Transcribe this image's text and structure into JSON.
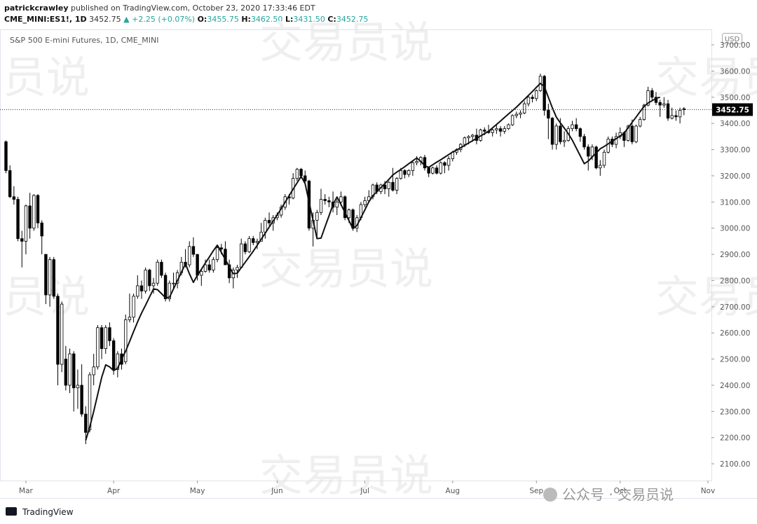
{
  "header": {
    "author": "patrickcrawley",
    "published": "published on TradingView.com, October 23, 2020 17:33:46 EDT",
    "symbol": "CME_MINI:ES1!, 1D",
    "last": "3452.75",
    "change": "▲ +2.25 (+0.07%)",
    "ohlc": [
      {
        "label": "O:",
        "value": "3455.75"
      },
      {
        "label": "H:",
        "value": "3462.50"
      },
      {
        "label": "L:",
        "value": "3431.50"
      },
      {
        "label": "C:",
        "value": "3452.75"
      }
    ]
  },
  "footer": {
    "brand": "TradingView",
    "watermark": "交易员说",
    "wechat": "公众号 · 交易员说"
  },
  "chart_data": {
    "type": "candlestick",
    "title": "S&P 500 E-mini Futures, 1D, CME_MINI",
    "currency": "USD",
    "grid": false,
    "up_color": "#ffffff",
    "down_color": "#000000",
    "last_line": true,
    "categories": [
      null,
      null,
      null,
      null,
      null,
      "Mar",
      null,
      null,
      null,
      null,
      null,
      null,
      null,
      null,
      null,
      null,
      null,
      null,
      null,
      null,
      null,
      null,
      null,
      null,
      null,
      null,
      null,
      "Apr",
      null,
      null,
      null,
      null,
      null,
      null,
      null,
      null,
      null,
      null,
      null,
      null,
      null,
      null,
      null,
      null,
      null,
      null,
      null,
      null,
      "May",
      null,
      null,
      null,
      null,
      null,
      null,
      null,
      null,
      null,
      null,
      null,
      null,
      null,
      null,
      null,
      null,
      null,
      null,
      null,
      "Jun",
      null,
      null,
      null,
      null,
      null,
      null,
      null,
      null,
      null,
      null,
      null,
      null,
      null,
      null,
      null,
      null,
      null,
      null,
      null,
      null,
      null,
      "Jul",
      null,
      null,
      null,
      null,
      null,
      null,
      null,
      null,
      null,
      null,
      null,
      null,
      null,
      null,
      null,
      null,
      null,
      null,
      null,
      null,
      null,
      "Aug",
      null,
      null,
      null,
      null,
      null,
      null,
      null,
      null,
      null,
      null,
      null,
      null,
      null,
      null,
      null,
      null,
      null,
      null,
      null,
      null,
      "Sep",
      null,
      null,
      null,
      null,
      null,
      null,
      null,
      null,
      null,
      null,
      null,
      null,
      null,
      null,
      null,
      null,
      null,
      null,
      null,
      null,
      "Oct",
      null,
      null,
      null,
      null,
      null,
      null,
      null,
      null,
      null,
      null,
      null,
      null,
      null,
      null,
      null,
      null,
      null,
      null,
      null,
      null,
      null,
      "Nov"
    ],
    "open": [
      3330,
      3220,
      3120,
      3110,
      2960,
      2950,
      3085,
      3000,
      3125,
      3020,
      2900,
      2745,
      2880,
      2740,
      2480,
      2500,
      2400,
      2520,
      2390,
      2400,
      2290,
      2230,
      2440,
      2470,
      2620,
      2540,
      2620,
      2570,
      2460,
      2520,
      2490,
      2650,
      2660,
      2740,
      2780,
      2760,
      2840,
      2780,
      2790,
      2870,
      2820,
      2730,
      2790,
      2790,
      2830,
      2870,
      2860,
      2930,
      2900,
      2820,
      2835,
      2860,
      2840,
      2880,
      2925,
      2920,
      2860,
      2810,
      2840,
      2850,
      2940,
      2910,
      2960,
      2945,
      2950,
      2985,
      3030,
      3020,
      3040,
      3050,
      3080,
      3120,
      3115,
      3190,
      3225,
      3200,
      3180,
      3000,
      3030,
      3060,
      3110,
      3105,
      3100,
      3080,
      3100,
      3120,
      3040,
      3070,
      3000,
      3040,
      3090,
      3105,
      3120,
      3165,
      3140,
      3165,
      3150,
      3175,
      3145,
      3190,
      3220,
      3205,
      3220,
      3250,
      3255,
      3270,
      3230,
      3210,
      3230,
      3210,
      3250,
      3240,
      3265,
      3290,
      3300,
      3320,
      3345,
      3350,
      3355,
      3335,
      3375,
      3370,
      3365,
      3375,
      3380,
      3370,
      3380,
      3395,
      3430,
      3435,
      3440,
      3475,
      3500,
      3495,
      3525,
      3580,
      3450,
      3420,
      3320,
      3390,
      3330,
      3335,
      3380,
      3395,
      3380,
      3350,
      3310,
      3275,
      3310,
      3230,
      3240,
      3290,
      3340,
      3320,
      3350,
      3365,
      3335,
      3390,
      3330,
      3390,
      3415,
      3470,
      3525,
      3500,
      3480,
      3470,
      3475,
      3420,
      3430,
      3425,
      3455.75,
      null,
      null,
      null,
      null,
      null,
      null
    ],
    "high": [
      3335,
      3240,
      3160,
      3120,
      2990,
      3090,
      3135,
      3130,
      3130,
      3030,
      2900,
      2890,
      2890,
      2750,
      2720,
      2550,
      2540,
      2530,
      2460,
      2480,
      2320,
      2450,
      2520,
      2630,
      2630,
      2630,
      2640,
      2580,
      2530,
      2540,
      2670,
      2750,
      2750,
      2820,
      2800,
      2850,
      2845,
      2810,
      2880,
      2880,
      2830,
      2800,
      2830,
      2840,
      2890,
      2920,
      2950,
      2965,
      2900,
      2840,
      2880,
      2880,
      2890,
      2930,
      2940,
      2950,
      2880,
      2850,
      2860,
      2960,
      2950,
      2970,
      2970,
      2960,
      3020,
      3040,
      3060,
      3050,
      3060,
      3090,
      3130,
      3130,
      3210,
      3230,
      3230,
      3220,
      3185,
      3060,
      3070,
      3150,
      3130,
      3120,
      3140,
      3110,
      3140,
      3125,
      3075,
      3075,
      3050,
      3100,
      3120,
      3145,
      3170,
      3175,
      3170,
      3180,
      3180,
      3230,
      3195,
      3230,
      3225,
      3225,
      3255,
      3275,
      3275,
      3280,
      3235,
      3235,
      3240,
      3255,
      3255,
      3275,
      3295,
      3305,
      3325,
      3350,
      3355,
      3360,
      3380,
      3380,
      3385,
      3395,
      3385,
      3395,
      3390,
      3390,
      3400,
      3435,
      3445,
      3450,
      3485,
      3505,
      3510,
      3530,
      3590,
      3585,
      3475,
      3425,
      3400,
      3420,
      3370,
      3390,
      3410,
      3420,
      3385,
      3360,
      3320,
      3320,
      3315,
      3260,
      3300,
      3350,
      3350,
      3365,
      3385,
      3370,
      3395,
      3415,
      3395,
      3425,
      3475,
      3540,
      3535,
      3520,
      3490,
      3500,
      3490,
      3460,
      3450,
      3460,
      3462.5,
      null,
      null,
      null,
      null,
      null,
      null
    ],
    "low": [
      3210,
      3115,
      3090,
      2950,
      2850,
      2900,
      2960,
      2990,
      3000,
      2900,
      2710,
      2700,
      2730,
      2400,
      2450,
      2380,
      2370,
      2300,
      2310,
      2280,
      2175,
      2220,
      2400,
      2460,
      2500,
      2520,
      2550,
      2440,
      2430,
      2460,
      2480,
      2640,
      2640,
      2730,
      2730,
      2750,
      2760,
      2750,
      2780,
      2810,
      2720,
      2720,
      2770,
      2770,
      2820,
      2850,
      2850,
      2890,
      2800,
      2780,
      2830,
      2830,
      2830,
      2870,
      2900,
      2860,
      2790,
      2770,
      2810,
      2850,
      2900,
      2905,
      2935,
      2920,
      2950,
      2960,
      3010,
      2990,
      3030,
      3040,
      3070,
      3090,
      3110,
      3180,
      3190,
      3170,
      2990,
      2930,
      2960,
      3050,
      3090,
      3080,
      3060,
      3050,
      3090,
      3030,
      3020,
      2990,
      2985,
      3030,
      3080,
      3100,
      3110,
      3130,
      3130,
      3130,
      3120,
      3140,
      3130,
      3185,
      3190,
      3195,
      3200,
      3240,
      3240,
      3220,
      3195,
      3205,
      3205,
      3205,
      3210,
      3220,
      3255,
      3280,
      3290,
      3310,
      3320,
      3330,
      3320,
      3330,
      3355,
      3360,
      3350,
      3360,
      3350,
      3360,
      3375,
      3390,
      3420,
      3420,
      3435,
      3465,
      3480,
      3485,
      3520,
      3430,
      3340,
      3300,
      3300,
      3320,
      3310,
      3330,
      3370,
      3370,
      3330,
      3300,
      3220,
      3260,
      3225,
      3200,
      3230,
      3285,
      3310,
      3305,
      3340,
      3310,
      3330,
      3320,
      3325,
      3385,
      3410,
      3465,
      3490,
      3470,
      3425,
      3460,
      3410,
      3415,
      3410,
      3400,
      3431.5,
      null,
      null,
      null,
      null,
      null,
      null
    ],
    "close": [
      3220,
      3120,
      3110,
      2960,
      2950,
      3085,
      3000,
      3125,
      3020,
      2970,
      2745,
      2880,
      2740,
      2480,
      2710,
      2400,
      2520,
      2390,
      2400,
      2290,
      2220,
      2440,
      2470,
      2620,
      2540,
      2620,
      2570,
      2460,
      2520,
      2480,
      2650,
      2660,
      2740,
      2780,
      2760,
      2840,
      2780,
      2790,
      2870,
      2820,
      2730,
      2790,
      2790,
      2830,
      2870,
      2860,
      2930,
      2900,
      2820,
      2835,
      2860,
      2840,
      2880,
      2925,
      2920,
      2860,
      2810,
      2840,
      2850,
      2940,
      2910,
      2960,
      2945,
      2950,
      2985,
      3030,
      3020,
      3040,
      3050,
      3080,
      3120,
      3115,
      3190,
      3225,
      3200,
      3180,
      3000,
      3030,
      3060,
      3110,
      3105,
      3100,
      3080,
      3100,
      3120,
      3040,
      3070,
      3000,
      3040,
      3090,
      3105,
      3120,
      3165,
      3140,
      3165,
      3150,
      3175,
      3145,
      3190,
      3220,
      3205,
      3220,
      3250,
      3255,
      3270,
      3230,
      3210,
      3230,
      3210,
      3250,
      3240,
      3265,
      3290,
      3300,
      3320,
      3345,
      3350,
      3355,
      3335,
      3375,
      3370,
      3365,
      3375,
      3380,
      3370,
      3380,
      3395,
      3430,
      3435,
      3440,
      3475,
      3500,
      3495,
      3525,
      3580,
      3450,
      3420,
      3320,
      3390,
      3330,
      3335,
      3380,
      3395,
      3380,
      3350,
      3310,
      3275,
      3310,
      3230,
      3240,
      3290,
      3340,
      3320,
      3350,
      3365,
      3335,
      3390,
      3330,
      3390,
      3415,
      3470,
      3525,
      3500,
      3480,
      3470,
      3475,
      3420,
      3430,
      3425,
      3450,
      3452.75,
      null,
      null,
      null,
      null,
      null,
      null
    ],
    "overlay": {
      "color": "#111111",
      "values": [
        null,
        null,
        null,
        null,
        null,
        null,
        null,
        null,
        null,
        null,
        null,
        null,
        null,
        null,
        null,
        null,
        null,
        null,
        null,
        null,
        2190,
        2240,
        2300,
        2365,
        2430,
        2478,
        2470,
        2456,
        2465,
        2500,
        2530,
        2567,
        2605,
        2642,
        2676,
        2706,
        2737,
        2768,
        2765,
        2750,
        2734,
        2736,
        2768,
        2800,
        2832,
        2864,
        2826,
        2793,
        2820,
        2843,
        2867,
        2890,
        2914,
        2935,
        2908,
        2880,
        2853,
        2826,
        2828,
        2849,
        2870,
        2891,
        2912,
        2935,
        2958,
        2981,
        3004,
        3027,
        3050,
        3074,
        3099,
        3124,
        3149,
        3173,
        3198,
        3170,
        3100,
        3030,
        2960,
        2962,
        3005,
        3047,
        3090,
        3119,
        3090,
        3060,
        3029,
        2998,
        3010,
        3040,
        3070,
        3101,
        3124,
        3139,
        3155,
        3170,
        3186,
        3203,
        3214,
        3224,
        3235,
        3246,
        3257,
        3268,
        3255,
        3239,
        3232,
        3242,
        3252,
        3261,
        3271,
        3281,
        3291,
        3298,
        3307,
        3316,
        3325,
        3334,
        3343,
        3352,
        3361,
        3370,
        3383,
        3396,
        3409,
        3423,
        3436,
        3449,
        3462,
        3477,
        3492,
        3507,
        3522,
        3538,
        3553,
        3540,
        3500,
        3460,
        3424,
        3402,
        3382,
        3361,
        3336,
        3306,
        3276,
        3246,
        3256,
        3272,
        3287,
        3303,
        3312,
        3322,
        3332,
        3342,
        3352,
        3363,
        3383,
        3404,
        3424,
        3445,
        3465,
        3478,
        3487,
        3496,
        3500,
        null,
        null,
        null,
        null,
        null,
        null,
        null,
        null,
        null,
        null,
        null,
        null
      ]
    },
    "ylim": [
      2036,
      3759
    ],
    "yticks": [
      {
        "value": 2100,
        "label": "2100.00"
      },
      {
        "value": 2200,
        "label": "2200.00"
      },
      {
        "value": 2300,
        "label": "2300.00"
      },
      {
        "value": 2400,
        "label": "2400.00"
      },
      {
        "value": 2500,
        "label": "2500.00"
      },
      {
        "value": 2600,
        "label": "2600.00"
      },
      {
        "value": 2700,
        "label": "2700.00"
      },
      {
        "value": 2800,
        "label": "2800.00"
      },
      {
        "value": 2900,
        "label": "2900.00"
      },
      {
        "value": 3000,
        "label": "3000.00"
      },
      {
        "value": 3100,
        "label": "3100.00"
      },
      {
        "value": 3200,
        "label": "3200.00"
      },
      {
        "value": 3300,
        "label": "3300.00"
      },
      {
        "value": 3400,
        "label": "3400.00"
      },
      {
        "value": 3500,
        "label": "3500.00"
      },
      {
        "value": 3600,
        "label": "3600.00"
      },
      {
        "value": 3700,
        "label": "3700.00"
      }
    ]
  }
}
